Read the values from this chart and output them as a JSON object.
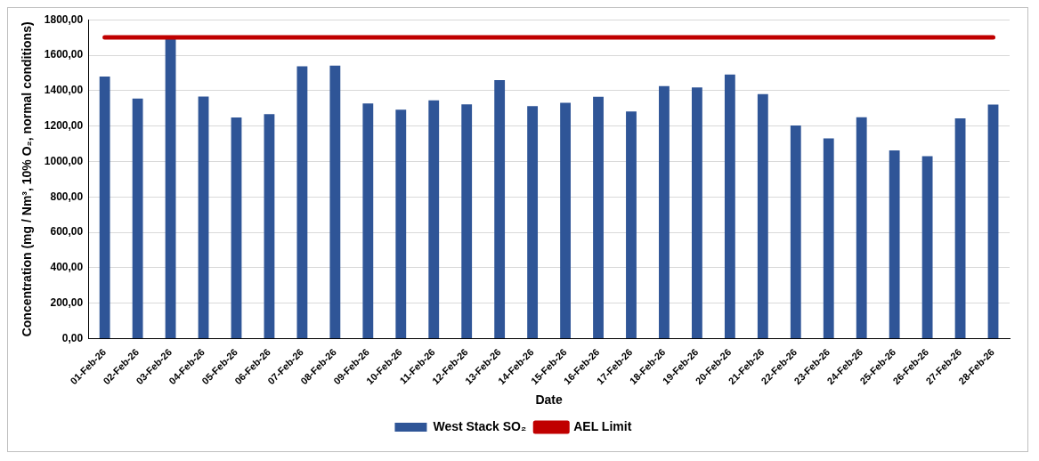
{
  "chart_data": {
    "type": "bar",
    "xlabel": "Date",
    "ylabel": "Concentration (mg / Nm³, 10% O₂, normal conditions)",
    "categories": [
      "01-Feb-26",
      "02-Feb-26",
      "03-Feb-26",
      "04-Feb-26",
      "05-Feb-26",
      "06-Feb-26",
      "07-Feb-26",
      "08-Feb-26",
      "09-Feb-26",
      "10-Feb-26",
      "11-Feb-26",
      "12-Feb-26",
      "13-Feb-26",
      "14-Feb-26",
      "15-Feb-26",
      "16-Feb-26",
      "17-Feb-26",
      "18-Feb-26",
      "19-Feb-26",
      "20-Feb-26",
      "21-Feb-26",
      "22-Feb-26",
      "23-Feb-26",
      "24-Feb-26",
      "25-Feb-26",
      "26-Feb-26",
      "27-Feb-26",
      "28-Feb-26"
    ],
    "series": [
      {
        "name": "West Stack SO₂",
        "color": "#2f5597",
        "values": [
          1479,
          1355,
          1700,
          1366,
          1248,
          1267,
          1537,
          1541,
          1328,
          1293,
          1345,
          1323,
          1459,
          1312,
          1331,
          1365,
          1283,
          1425,
          1418,
          1491,
          1380,
          1203,
          1130,
          1250,
          1063,
          1030,
          1243,
          1321
        ]
      },
      {
        "name": "AEL Limit",
        "type": "line",
        "color": "#c00000",
        "values": [
          1700,
          1700,
          1700,
          1700,
          1700,
          1700,
          1700,
          1700,
          1700,
          1700,
          1700,
          1700,
          1700,
          1700,
          1700,
          1700,
          1700,
          1700,
          1700,
          1700,
          1700,
          1700,
          1700,
          1700,
          1700,
          1700,
          1700,
          1700
        ]
      }
    ],
    "ylim": [
      0,
      1800
    ],
    "yticks": [
      {
        "value": 0,
        "label": "0,00"
      },
      {
        "value": 200,
        "label": "200,00"
      },
      {
        "value": 400,
        "label": "400,00"
      },
      {
        "value": 600,
        "label": "600,00"
      },
      {
        "value": 800,
        "label": "800,00"
      },
      {
        "value": 1000,
        "label": "1000,00"
      },
      {
        "value": 1200,
        "label": "1200,00"
      },
      {
        "value": 1400,
        "label": "1400,00"
      },
      {
        "value": 1600,
        "label": "1600,00"
      },
      {
        "value": 1800,
        "label": "1800,00"
      }
    ],
    "grid": "y",
    "legend": "bottom",
    "marker": "none"
  }
}
